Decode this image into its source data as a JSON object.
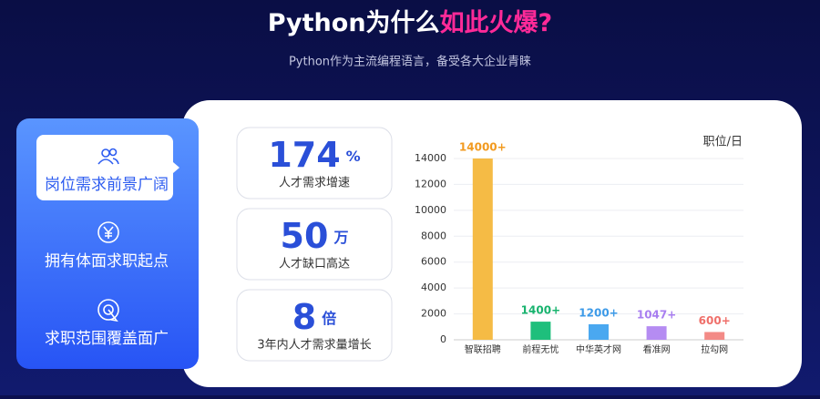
{
  "header": {
    "title": "Python为什么",
    "title_highlight": "如此火爆?",
    "subtitle": "Python作为主流编程语言，备受各大企业青睐"
  },
  "menu": [
    "岗位需求前景广阔",
    "拥有体面求职起点",
    "求职范围覆盖面广"
  ],
  "stats": [
    {
      "number": 174,
      "unit": "%",
      "label": "人才需求增速"
    },
    {
      "number": 50,
      "unit": "万",
      "label": "人才缺口高达"
    },
    {
      "number": 8,
      "unit": "倍",
      "label": "3年内人才需求量增长"
    }
  ],
  "chart_data": {
    "type": "bar",
    "y_label": "职位/日",
    "categories": [
      "智联招聘",
      "前程无忧",
      "中华英才网",
      "看准网",
      "拉勾网"
    ],
    "values": [
      14000,
      1400,
      1200,
      1047,
      600
    ],
    "value_labels": [
      "14000+",
      "1400+",
      "1200+",
      "1047+",
      "600+"
    ],
    "colors": [
      "#f5bb45",
      "#1ebf7c",
      "#4aa8f0",
      "#b58cf2",
      "#f38a86"
    ],
    "label_colors": [
      "#f29a1f",
      "#17b36e",
      "#3c9ae8",
      "#a87ef0",
      "#ef6f6a"
    ],
    "ylim": [
      0,
      14000
    ],
    "yticks": [
      0,
      2000,
      4000,
      6000,
      8000,
      10000,
      12000,
      14000
    ],
    "grid": true
  }
}
